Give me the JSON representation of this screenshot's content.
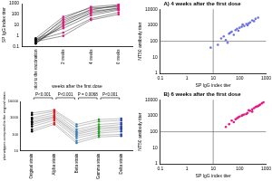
{
  "chart_data": [
    {
      "type": "line",
      "x_label": "weeks after the first dose",
      "y_label": "SP IgG index titer",
      "categories": [
        "prior to the vaccination",
        "2 weeks",
        "4 weeks",
        "6 weeks"
      ],
      "log": "y",
      "grid": false,
      "marker": "circle",
      "colors": [
        "#000000",
        "#e6197f",
        "#e6197f",
        "#e6197f"
      ],
      "ylim": [
        0.1,
        1000
      ],
      "yticks": [
        0.1,
        1,
        10,
        100,
        1000
      ],
      "series": [
        {
          "color": "#333333",
          "values": [
            0.3,
            8,
            150,
            400
          ]
        },
        {
          "color": "#333333",
          "values": [
            0.2,
            20,
            300,
            600
          ]
        },
        {
          "color": "#333333",
          "values": [
            0.5,
            5,
            80,
            250
          ]
        },
        {
          "color": "#333333",
          "values": [
            0.3,
            40,
            500,
            800
          ]
        },
        {
          "color": "#333333",
          "values": [
            0.4,
            2,
            40,
            150
          ]
        },
        {
          "color": "#333333",
          "values": [
            0.2,
            15,
            200,
            350
          ]
        },
        {
          "color": "#333333",
          "values": [
            0.6,
            60,
            400,
            500
          ]
        },
        {
          "color": "#333333",
          "values": [
            0.3,
            1,
            30,
            100
          ]
        },
        {
          "color": "#333333",
          "values": [
            0.2,
            10,
            120,
            300
          ]
        },
        {
          "color": "#333333",
          "values": [
            0.4,
            30,
            250,
            700
          ]
        }
      ]
    },
    {
      "type": "line",
      "y_label": "phenotypes compared to the original strain",
      "categories": [
        "Original strain",
        "Alpha strain",
        "Beta strain",
        "Gamma strain",
        "Delta strain"
      ],
      "log": "y",
      "grid": false,
      "marker": "circle",
      "colors": [
        "#000000",
        "#e41a1c",
        "#377eb8",
        "#2ca02c",
        "#1f3fbf"
      ],
      "ylim": [
        10,
        10000
      ],
      "yticks": [
        10,
        100,
        1000,
        10000
      ],
      "comparisons": [
        {
          "pair": [
            "Original strain",
            "Alpha strain"
          ],
          "label": "P<0.001"
        },
        {
          "pair": [
            "Alpha strain",
            "Beta strain"
          ],
          "label": "P<0.001"
        },
        {
          "pair": [
            "Beta strain",
            "Gamma strain"
          ],
          "label": "P = 0.0068"
        },
        {
          "pair": [
            "Gamma strain",
            "Delta strain"
          ],
          "label": "P<0.001"
        }
      ],
      "series": [
        {
          "color": "#888888",
          "values": [
            800,
            1500,
            150,
            300,
            400
          ]
        },
        {
          "color": "#888888",
          "values": [
            400,
            900,
            80,
            150,
            200
          ]
        },
        {
          "color": "#888888",
          "values": [
            1500,
            2500,
            300,
            600,
            700
          ]
        },
        {
          "color": "#888888",
          "values": [
            200,
            500,
            40,
            90,
            100
          ]
        },
        {
          "color": "#888888",
          "values": [
            600,
            1200,
            120,
            250,
            300
          ]
        },
        {
          "color": "#888888",
          "values": [
            1000,
            2000,
            200,
            400,
            500
          ]
        },
        {
          "color": "#888888",
          "values": [
            300,
            700,
            60,
            120,
            150
          ]
        },
        {
          "color": "#888888",
          "values": [
            2000,
            3000,
            400,
            800,
            900
          ]
        },
        {
          "color": "#888888",
          "values": [
            150,
            400,
            30,
            70,
            80
          ]
        },
        {
          "color": "#888888",
          "values": [
            500,
            1100,
            100,
            200,
            250
          ]
        }
      ]
    },
    {
      "type": "scatter",
      "title": "A) 4 weeks after the first dose",
      "x_label": "SP IgG index titer",
      "y_label": "NT50 antibody titer",
      "log": true,
      "grid": false,
      "marker": "circle",
      "xlim": [
        0.1,
        1000
      ],
      "xticks": [
        0.1,
        1,
        10,
        100,
        1000
      ],
      "ylim": [
        1,
        10000
      ],
      "yticks": [
        1,
        10,
        100,
        1000,
        10000
      ],
      "reference_lines": {
        "x": 10,
        "y": 100
      },
      "series": [
        {
          "color": "#6b74e0",
          "x": [
            15,
            20,
            25,
            30,
            40,
            50,
            60,
            70,
            80,
            100,
            120,
            150,
            180,
            200,
            250,
            300,
            350,
            400,
            500,
            45,
            90,
            130,
            220,
            35,
            8
          ],
          "values": [
            60,
            150,
            200,
            120,
            300,
            400,
            250,
            500,
            600,
            700,
            800,
            900,
            1200,
            1000,
            1500,
            2000,
            1800,
            2500,
            3000,
            350,
            450,
            1100,
            1300,
            80,
            40
          ]
        }
      ]
    },
    {
      "type": "scatter",
      "title": "B) 6 weeks after the first dose",
      "x_label": "SP IgG index titer",
      "y_label": "NT50 antibody titer",
      "log": true,
      "grid": false,
      "marker": "circle",
      "xlim": [
        0.1,
        1000
      ],
      "xticks": [
        0.1,
        1,
        10,
        100,
        1000
      ],
      "ylim": [
        1,
        10000
      ],
      "yticks": [
        1,
        10,
        100,
        1000,
        10000
      ],
      "reference_lines": {
        "x": 10,
        "y": 100
      },
      "series": [
        {
          "color": "#e6197f",
          "x": [
            30,
            40,
            50,
            60,
            80,
            100,
            120,
            150,
            200,
            250,
            300,
            350,
            400,
            500,
            600,
            700,
            800,
            70,
            180,
            450,
            90,
            220,
            130,
            550,
            300
          ],
          "values": [
            200,
            300,
            500,
            400,
            700,
            900,
            1000,
            1200,
            1500,
            2000,
            2500,
            3000,
            3500,
            4000,
            5000,
            6000,
            7000,
            600,
            1300,
            3800,
            800,
            2200,
            1100,
            4500,
            1800
          ]
        }
      ]
    }
  ]
}
